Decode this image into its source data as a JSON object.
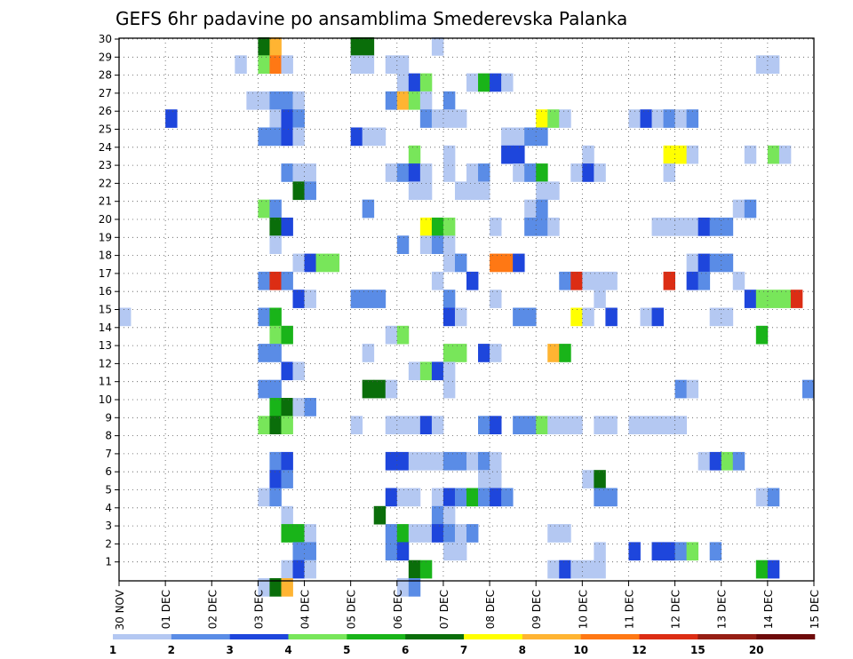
{
  "chart_data": {
    "type": "heatmap",
    "title": "GEFS 6hr padavine po ansamblima Smederevska Palanka",
    "x_ticks": [
      "30 NOV",
      "01 DEC",
      "02 DEC",
      "03 DEC",
      "04 DEC",
      "05 DEC",
      "06 DEC",
      "07 DEC",
      "08 DEC",
      "09 DEC",
      "10 DEC",
      "11 DEC",
      "12 DEC",
      "13 DEC",
      "14 DEC",
      "15 DEC"
    ],
    "y_ticks": [
      1,
      2,
      3,
      4,
      5,
      6,
      7,
      8,
      9,
      10,
      11,
      12,
      13,
      14,
      15,
      16,
      17,
      18,
      19,
      20,
      21,
      22,
      23,
      24,
      25,
      26,
      27,
      28,
      29,
      30
    ],
    "x_range_days": [
      0,
      15
    ],
    "steps_per_day": 4,
    "grid": "dotted",
    "colorbar": {
      "labels": [
        "1",
        "2",
        "3",
        "4",
        "5",
        "6",
        "7",
        "8",
        "10",
        "12",
        "15",
        "20"
      ],
      "colors": [
        "#b4c8f2",
        "#5a8ce6",
        "#1e46dc",
        "#78e65a",
        "#19b419",
        "#0a6e0a",
        "#ffff00",
        "#ffb432",
        "#ff7814",
        "#dc2d14",
        "#961e14",
        "#6e0a0a"
      ]
    },
    "cells": [
      [
        30,
        12,
        5
      ],
      [
        30,
        13,
        7
      ],
      [
        30,
        20,
        5
      ],
      [
        30,
        21,
        5
      ],
      [
        30,
        27,
        0
      ],
      [
        29,
        10,
        0
      ],
      [
        29,
        12,
        3
      ],
      [
        29,
        13,
        8
      ],
      [
        29,
        14,
        0
      ],
      [
        29,
        20,
        0
      ],
      [
        29,
        21,
        0
      ],
      [
        29,
        23,
        0
      ],
      [
        29,
        24,
        0
      ],
      [
        29,
        55,
        0
      ],
      [
        29,
        56,
        0
      ],
      [
        28,
        24,
        0
      ],
      [
        28,
        25,
        2
      ],
      [
        28,
        26,
        3
      ],
      [
        28,
        30,
        0
      ],
      [
        28,
        31,
        4
      ],
      [
        28,
        32,
        2
      ],
      [
        28,
        33,
        0
      ],
      [
        27,
        11,
        0
      ],
      [
        27,
        12,
        0
      ],
      [
        27,
        13,
        1
      ],
      [
        27,
        14,
        1
      ],
      [
        27,
        15,
        0
      ],
      [
        27,
        23,
        1
      ],
      [
        27,
        24,
        7
      ],
      [
        27,
        25,
        3
      ],
      [
        27,
        26,
        0
      ],
      [
        27,
        28,
        1
      ],
      [
        26,
        4,
        2
      ],
      [
        26,
        13,
        0
      ],
      [
        26,
        14,
        2
      ],
      [
        26,
        15,
        1
      ],
      [
        26,
        26,
        1
      ],
      [
        26,
        27,
        0
      ],
      [
        26,
        28,
        0
      ],
      [
        26,
        29,
        0
      ],
      [
        26,
        36,
        6
      ],
      [
        26,
        37,
        3
      ],
      [
        26,
        38,
        0
      ],
      [
        26,
        44,
        0
      ],
      [
        26,
        45,
        2
      ],
      [
        26,
        46,
        0
      ],
      [
        26,
        47,
        1
      ],
      [
        26,
        48,
        0
      ],
      [
        26,
        49,
        1
      ],
      [
        25,
        12,
        1
      ],
      [
        25,
        13,
        1
      ],
      [
        25,
        14,
        2
      ],
      [
        25,
        15,
        0
      ],
      [
        25,
        20,
        2
      ],
      [
        25,
        21,
        0
      ],
      [
        25,
        22,
        0
      ],
      [
        25,
        33,
        0
      ],
      [
        25,
        34,
        0
      ],
      [
        25,
        35,
        1
      ],
      [
        25,
        36,
        1
      ],
      [
        24,
        25,
        3
      ],
      [
        24,
        28,
        0
      ],
      [
        24,
        33,
        2
      ],
      [
        24,
        34,
        2
      ],
      [
        24,
        40,
        0
      ],
      [
        24,
        47,
        6
      ],
      [
        24,
        48,
        6
      ],
      [
        24,
        49,
        0
      ],
      [
        24,
        54,
        0
      ],
      [
        24,
        56,
        3
      ],
      [
        24,
        57,
        0
      ],
      [
        23,
        14,
        1
      ],
      [
        23,
        15,
        0
      ],
      [
        23,
        16,
        0
      ],
      [
        23,
        23,
        0
      ],
      [
        23,
        24,
        1
      ],
      [
        23,
        25,
        2
      ],
      [
        23,
        26,
        0
      ],
      [
        23,
        28,
        0
      ],
      [
        23,
        30,
        0
      ],
      [
        23,
        31,
        1
      ],
      [
        23,
        34,
        0
      ],
      [
        23,
        35,
        1
      ],
      [
        23,
        36,
        4
      ],
      [
        23,
        39,
        0
      ],
      [
        23,
        40,
        2
      ],
      [
        23,
        41,
        0
      ],
      [
        23,
        47,
        0
      ],
      [
        22,
        15,
        5
      ],
      [
        22,
        16,
        1
      ],
      [
        22,
        25,
        0
      ],
      [
        22,
        26,
        0
      ],
      [
        22,
        29,
        0
      ],
      [
        22,
        30,
        0
      ],
      [
        22,
        31,
        0
      ],
      [
        22,
        36,
        0
      ],
      [
        22,
        37,
        0
      ],
      [
        21,
        12,
        3
      ],
      [
        21,
        13,
        1
      ],
      [
        21,
        21,
        1
      ],
      [
        21,
        35,
        0
      ],
      [
        21,
        36,
        1
      ],
      [
        21,
        53,
        0
      ],
      [
        21,
        54,
        1
      ],
      [
        20,
        13,
        5
      ],
      [
        20,
        14,
        2
      ],
      [
        20,
        26,
        6
      ],
      [
        20,
        27,
        4
      ],
      [
        20,
        28,
        3
      ],
      [
        20,
        32,
        0
      ],
      [
        20,
        35,
        1
      ],
      [
        20,
        36,
        1
      ],
      [
        20,
        37,
        0
      ],
      [
        20,
        46,
        0
      ],
      [
        20,
        47,
        0
      ],
      [
        20,
        48,
        0
      ],
      [
        20,
        49,
        0
      ],
      [
        20,
        50,
        2
      ],
      [
        20,
        51,
        1
      ],
      [
        20,
        52,
        1
      ],
      [
        19,
        13,
        0
      ],
      [
        19,
        24,
        1
      ],
      [
        19,
        26,
        0
      ],
      [
        19,
        27,
        1
      ],
      [
        19,
        28,
        0
      ],
      [
        18,
        15,
        0
      ],
      [
        18,
        16,
        2
      ],
      [
        18,
        17,
        3
      ],
      [
        18,
        18,
        3
      ],
      [
        18,
        28,
        0
      ],
      [
        18,
        29,
        1
      ],
      [
        18,
        32,
        8
      ],
      [
        18,
        33,
        8
      ],
      [
        18,
        34,
        2
      ],
      [
        18,
        49,
        0
      ],
      [
        18,
        50,
        2
      ],
      [
        18,
        51,
        1
      ],
      [
        18,
        52,
        1
      ],
      [
        17,
        12,
        1
      ],
      [
        17,
        13,
        9
      ],
      [
        17,
        14,
        1
      ],
      [
        17,
        27,
        0
      ],
      [
        17,
        30,
        2
      ],
      [
        17,
        38,
        1
      ],
      [
        17,
        39,
        9
      ],
      [
        17,
        40,
        0
      ],
      [
        17,
        41,
        0
      ],
      [
        17,
        42,
        0
      ],
      [
        17,
        47,
        9
      ],
      [
        17,
        49,
        2
      ],
      [
        17,
        50,
        1
      ],
      [
        17,
        53,
        0
      ],
      [
        16,
        15,
        2
      ],
      [
        16,
        16,
        0
      ],
      [
        16,
        20,
        1
      ],
      [
        16,
        21,
        1
      ],
      [
        16,
        22,
        1
      ],
      [
        16,
        28,
        1
      ],
      [
        16,
        32,
        0
      ],
      [
        16,
        41,
        0
      ],
      [
        16,
        54,
        2
      ],
      [
        16,
        55,
        3
      ],
      [
        16,
        56,
        3
      ],
      [
        16,
        57,
        3
      ],
      [
        16,
        58,
        9
      ],
      [
        15,
        0,
        0
      ],
      [
        15,
        12,
        1
      ],
      [
        15,
        13,
        4
      ],
      [
        15,
        28,
        2
      ],
      [
        15,
        29,
        0
      ],
      [
        15,
        34,
        1
      ],
      [
        15,
        35,
        1
      ],
      [
        15,
        39,
        6
      ],
      [
        15,
        40,
        0
      ],
      [
        15,
        42,
        2
      ],
      [
        15,
        45,
        0
      ],
      [
        15,
        46,
        2
      ],
      [
        15,
        51,
        0
      ],
      [
        15,
        52,
        0
      ],
      [
        14,
        13,
        3
      ],
      [
        14,
        14,
        4
      ],
      [
        14,
        23,
        0
      ],
      [
        14,
        24,
        3
      ],
      [
        14,
        55,
        4
      ],
      [
        13,
        12,
        1
      ],
      [
        13,
        13,
        1
      ],
      [
        13,
        21,
        0
      ],
      [
        13,
        28,
        3
      ],
      [
        13,
        29,
        3
      ],
      [
        13,
        31,
        2
      ],
      [
        13,
        32,
        0
      ],
      [
        13,
        37,
        7
      ],
      [
        13,
        38,
        4
      ],
      [
        12,
        14,
        2
      ],
      [
        12,
        15,
        0
      ],
      [
        12,
        25,
        0
      ],
      [
        12,
        26,
        3
      ],
      [
        12,
        27,
        2
      ],
      [
        12,
        28,
        0
      ],
      [
        11,
        12,
        1
      ],
      [
        11,
        13,
        1
      ],
      [
        11,
        21,
        5
      ],
      [
        11,
        22,
        5
      ],
      [
        11,
        23,
        0
      ],
      [
        11,
        28,
        0
      ],
      [
        11,
        48,
        1
      ],
      [
        11,
        49,
        0
      ],
      [
        11,
        59,
        1
      ],
      [
        10,
        13,
        4
      ],
      [
        10,
        14,
        5
      ],
      [
        10,
        15,
        0
      ],
      [
        10,
        16,
        1
      ],
      [
        9,
        12,
        3
      ],
      [
        9,
        13,
        5
      ],
      [
        9,
        14,
        3
      ],
      [
        9,
        20,
        0
      ],
      [
        9,
        23,
        0
      ],
      [
        9,
        24,
        0
      ],
      [
        9,
        25,
        0
      ],
      [
        9,
        26,
        2
      ],
      [
        9,
        27,
        0
      ],
      [
        9,
        31,
        1
      ],
      [
        9,
        32,
        2
      ],
      [
        9,
        34,
        1
      ],
      [
        9,
        35,
        1
      ],
      [
        9,
        36,
        3
      ],
      [
        9,
        37,
        0
      ],
      [
        9,
        38,
        0
      ],
      [
        9,
        39,
        0
      ],
      [
        9,
        41,
        0
      ],
      [
        9,
        42,
        0
      ],
      [
        9,
        44,
        0
      ],
      [
        9,
        45,
        0
      ],
      [
        9,
        46,
        0
      ],
      [
        9,
        47,
        0
      ],
      [
        9,
        48,
        0
      ],
      [
        7,
        13,
        1
      ],
      [
        7,
        14,
        2
      ],
      [
        7,
        23,
        2
      ],
      [
        7,
        24,
        2
      ],
      [
        7,
        25,
        0
      ],
      [
        7,
        26,
        0
      ],
      [
        7,
        27,
        0
      ],
      [
        7,
        28,
        1
      ],
      [
        7,
        29,
        1
      ],
      [
        7,
        30,
        0
      ],
      [
        7,
        31,
        1
      ],
      [
        7,
        32,
        0
      ],
      [
        7,
        50,
        0
      ],
      [
        7,
        51,
        2
      ],
      [
        7,
        52,
        3
      ],
      [
        7,
        53,
        1
      ],
      [
        6,
        13,
        2
      ],
      [
        6,
        14,
        1
      ],
      [
        6,
        31,
        0
      ],
      [
        6,
        32,
        0
      ],
      [
        6,
        40,
        0
      ],
      [
        6,
        41,
        5
      ],
      [
        5,
        12,
        0
      ],
      [
        5,
        13,
        1
      ],
      [
        5,
        23,
        2
      ],
      [
        5,
        24,
        0
      ],
      [
        5,
        25,
        0
      ],
      [
        5,
        27,
        0
      ],
      [
        5,
        28,
        2
      ],
      [
        5,
        29,
        1
      ],
      [
        5,
        30,
        4
      ],
      [
        5,
        31,
        1
      ],
      [
        5,
        32,
        2
      ],
      [
        5,
        33,
        1
      ],
      [
        5,
        41,
        1
      ],
      [
        5,
        42,
        1
      ],
      [
        5,
        55,
        0
      ],
      [
        5,
        56,
        1
      ],
      [
        4,
        14,
        0
      ],
      [
        4,
        22,
        5
      ],
      [
        4,
        27,
        1
      ],
      [
        4,
        28,
        0
      ],
      [
        3,
        14,
        4
      ],
      [
        3,
        15,
        4
      ],
      [
        3,
        16,
        0
      ],
      [
        3,
        23,
        1
      ],
      [
        3,
        24,
        4
      ],
      [
        3,
        25,
        0
      ],
      [
        3,
        26,
        0
      ],
      [
        3,
        27,
        2
      ],
      [
        3,
        28,
        1
      ],
      [
        3,
        29,
        0
      ],
      [
        3,
        30,
        1
      ],
      [
        3,
        37,
        0
      ],
      [
        3,
        38,
        0
      ],
      [
        2,
        15,
        1
      ],
      [
        2,
        16,
        1
      ],
      [
        2,
        23,
        1
      ],
      [
        2,
        24,
        2
      ],
      [
        2,
        28,
        0
      ],
      [
        2,
        29,
        0
      ],
      [
        2,
        41,
        0
      ],
      [
        2,
        44,
        2
      ],
      [
        2,
        46,
        2
      ],
      [
        2,
        47,
        2
      ],
      [
        2,
        48,
        1
      ],
      [
        2,
        49,
        3
      ],
      [
        2,
        51,
        1
      ],
      [
        1,
        14,
        0
      ],
      [
        1,
        15,
        2
      ],
      [
        1,
        16,
        0
      ],
      [
        1,
        25,
        5
      ],
      [
        1,
        26,
        4
      ],
      [
        1,
        37,
        0
      ],
      [
        1,
        38,
        2
      ],
      [
        1,
        39,
        0
      ],
      [
        1,
        40,
        0
      ],
      [
        1,
        41,
        0
      ],
      [
        1,
        55,
        4
      ],
      [
        1,
        56,
        2
      ],
      [
        0,
        12,
        0
      ],
      [
        0,
        13,
        5
      ],
      [
        0,
        14,
        7
      ],
      [
        0,
        24,
        0
      ],
      [
        0,
        25,
        1
      ]
    ]
  }
}
